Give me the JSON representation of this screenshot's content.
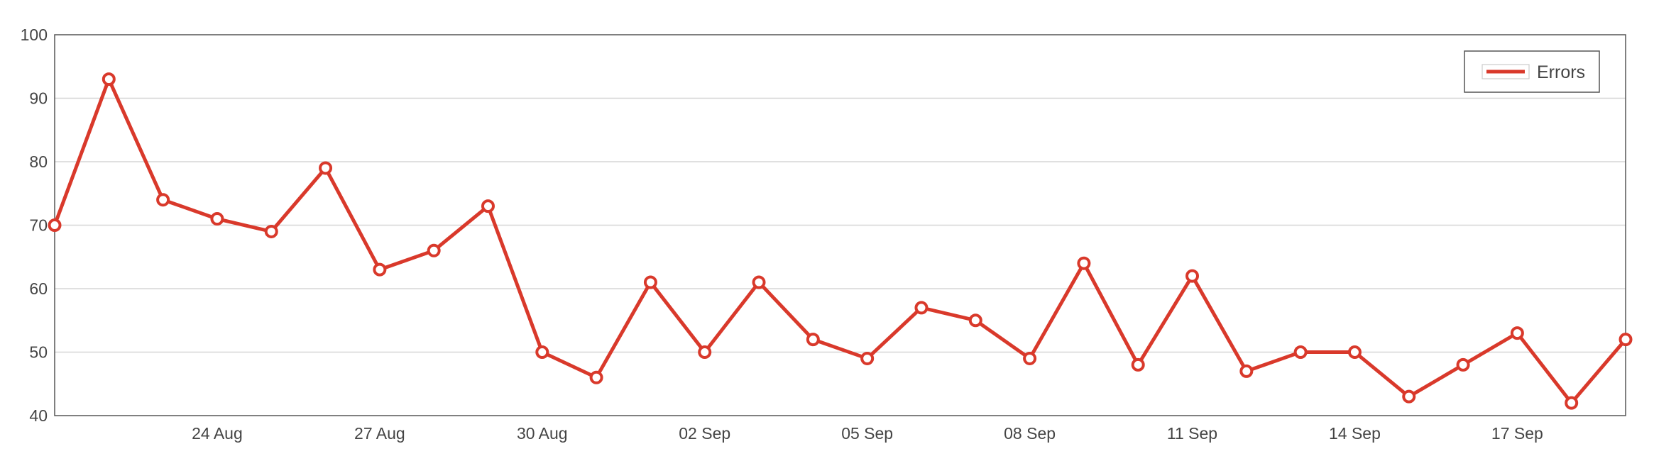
{
  "chart_data": {
    "type": "line",
    "x": [
      "21 Aug",
      "22 Aug",
      "23 Aug",
      "24 Aug",
      "25 Aug",
      "26 Aug",
      "27 Aug",
      "28 Aug",
      "29 Aug",
      "30 Aug",
      "31 Aug",
      "01 Sep",
      "02 Sep",
      "03 Sep",
      "04 Sep",
      "05 Sep",
      "06 Sep",
      "07 Sep",
      "08 Sep",
      "09 Sep",
      "10 Sep",
      "11 Sep",
      "12 Sep",
      "13 Sep",
      "14 Sep",
      "15 Sep",
      "16 Sep",
      "17 Sep",
      "18 Sep",
      "19 Sep"
    ],
    "series": [
      {
        "name": "Errors",
        "color": "#d9392b",
        "values": [
          70,
          93,
          74,
          71,
          69,
          79,
          63,
          66,
          73,
          50,
          46,
          61,
          50,
          61,
          52,
          49,
          57,
          55,
          49,
          64,
          48,
          62,
          47,
          50,
          50,
          43,
          48,
          53,
          42,
          52
        ]
      }
    ],
    "x_tick_labels": [
      "24 Aug",
      "27 Aug",
      "30 Aug",
      "02 Sep",
      "05 Sep",
      "08 Sep",
      "11 Sep",
      "14 Sep",
      "17 Sep"
    ],
    "y_ticks": [
      40,
      50,
      60,
      70,
      80,
      90,
      100
    ],
    "ylim": [
      40,
      100
    ],
    "grid": true,
    "legend_position": "top-right",
    "marker": "hollow-circle"
  }
}
